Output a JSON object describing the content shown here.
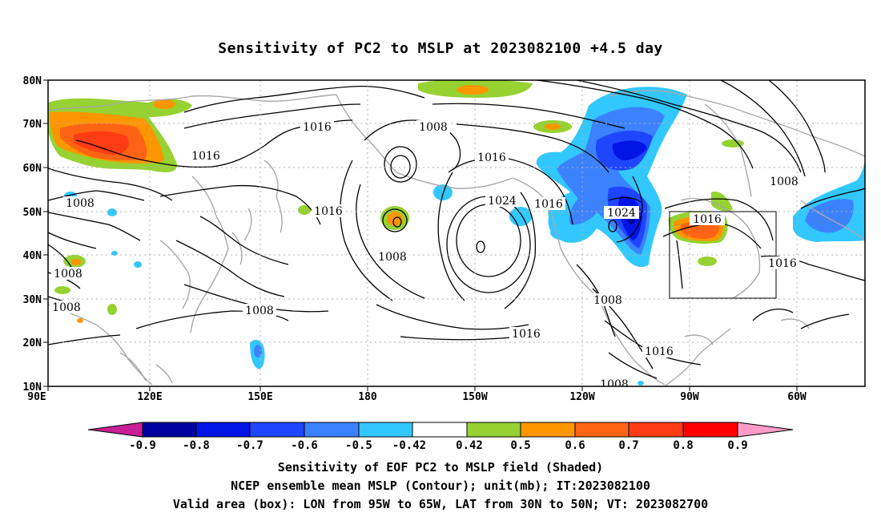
{
  "title": "Sensitivity of PC2 to MSLP at 2023082100 +4.5 day",
  "lat_labels": [
    "80N",
    "70N",
    "60N",
    "50N",
    "40N",
    "30N",
    "20N",
    "10N"
  ],
  "lon_labels": [
    "90E",
    "120E",
    "150E",
    "180",
    "150W",
    "120W",
    "90W",
    "60W"
  ],
  "contour_labels": [
    "1016",
    "1016",
    "1008",
    "1016",
    "1016",
    "1024",
    "1016",
    "1024",
    "1016",
    "1008",
    "1008",
    "1008",
    "1008",
    "1008",
    "1008",
    "1016",
    "1008",
    "1016",
    "1016",
    "1008"
  ],
  "colorbar": {
    "labels": [
      "-0.9",
      "-0.8",
      "-0.7",
      "-0.6",
      "-0.5",
      "-0.42",
      "0.42",
      "0.5",
      "0.6",
      "0.7",
      "0.8",
      "0.9"
    ],
    "colors": {
      "below_min": "#c81e96",
      "b1": "#0000a0",
      "b2": "#0014e6",
      "b3": "#1e46ff",
      "b4": "#3c82ff",
      "b5": "#32c8ff",
      "neutral": "#ffffff",
      "p1": "#96d232",
      "p2": "#ff9600",
      "p3": "#ff6414",
      "p4": "#ff3c14",
      "p5": "#ff0000",
      "above_max": "#ff9bc8"
    }
  },
  "colors": {
    "coast": "#a8a8a8",
    "contour": "#000000",
    "grid": "#b0b0b0"
  },
  "footer": {
    "line1": "Sensitivity of EOF PC2 to MSLP field (Shaded)",
    "line2": "NCEP ensemble mean MSLP (Contour); unit(mb); IT:2023082100",
    "line3": "Valid area (box): LON from 95W to 65W, LAT from 30N to 50N; VT: 2023082700"
  }
}
